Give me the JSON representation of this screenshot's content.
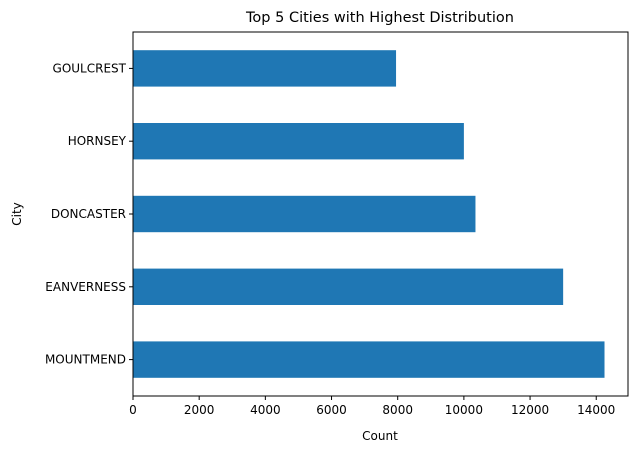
{
  "chart_data": {
    "type": "bar",
    "orientation": "horizontal",
    "title": "Top 5 Cities with Highest Distribution",
    "xlabel": "Count",
    "ylabel": "City",
    "categories": [
      "MOUNTMEND",
      "EANVERNESS",
      "DONCASTER",
      "HORNSEY",
      "GOULCREST"
    ],
    "values": [
      14250,
      13000,
      10350,
      10000,
      7950
    ],
    "xlim": [
      0,
      14960
    ],
    "xticks": [
      0,
      2000,
      4000,
      6000,
      8000,
      10000,
      12000,
      14000
    ],
    "xtick_labels": [
      "0",
      "2000",
      "4000",
      "6000",
      "8000",
      "10000",
      "12000",
      "14000"
    ],
    "grid": false,
    "legend": "none",
    "bar_color": "#1f77b4"
  }
}
